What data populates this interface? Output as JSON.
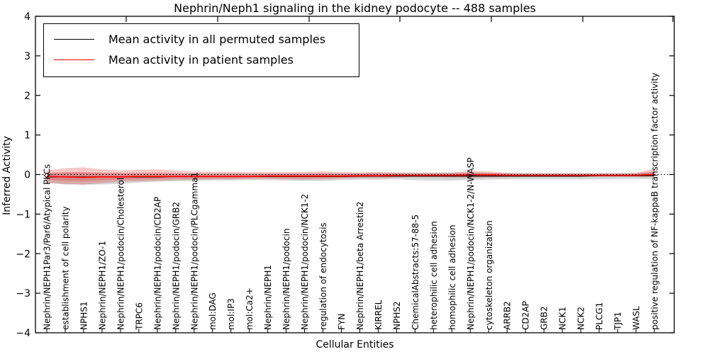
{
  "figure": {
    "title": "Nephrin/Neph1 signaling in the kidney podocyte -- 488 samples",
    "xlabel": "Cellular Entities",
    "ylabel": "Inferred Activity"
  },
  "legend": {
    "items": [
      {
        "label": "Mean activity in all permuted samples",
        "color": "#000000"
      },
      {
        "label": "Mean activity in patient samples",
        "color": "#ff0000"
      }
    ],
    "position": "upper left"
  },
  "chart_data": {
    "type": "line",
    "title": "Nephrin/Neph1 signaling in the kidney podocyte -- 488 samples",
    "xlabel": "Cellular Entities",
    "ylabel": "Inferred Activity",
    "ylim": [
      -4,
      4
    ],
    "yticks": [
      -4,
      -3,
      -2,
      -1,
      0,
      1,
      2,
      3,
      4
    ],
    "grid": false,
    "legend_position": "upper left",
    "zero_line": {
      "style": "dotted",
      "color": "#000000",
      "y": 0
    },
    "categories": [
      "Nephrin/NEPH1Par3/Par6/Atypical PKCs",
      "establishment of cell polarity",
      "NPHS1",
      "Nephrin/NEPH1/ZO-1",
      "Nephrin/NEPH1/podocin/Cholesterol",
      "TRPC6",
      "Nephrin/NEPH1/podocin/CD2AP",
      "Nephrin/NEPH1/podocin/GRB2",
      "Nephrin/NEPH1/podocin/PLCgamma1",
      "mol:DAG",
      "mol:IP3",
      "mol:Ca2+",
      "Nephrin/NEPH1",
      "Nephrin/NEPH1/podocin",
      "Nephrin/NEPH1/podocin/NCK1-2",
      "regulation of endocytosis",
      "FYN",
      "Nephrin/NEPH1/beta Arrestin2",
      "KIRREL",
      "NPHS2",
      "ChemicalAbstracts:57-88-5",
      "heterophilic cell adhesion",
      "homophilic cell adhesion",
      "Nephrin/NEPH1/podocin/NCK1-2/N-WASP",
      "cytoskeleton organization",
      "ARRB2",
      "CD2AP",
      "GRB2",
      "NCK1",
      "NCK2",
      "PLCG1",
      "TJP1",
      "WASL",
      "positive regulation of NF-kappaB transcription factor activity"
    ],
    "series": [
      {
        "name": "Mean activity in all permuted samples",
        "color": "#000000",
        "values": [
          -0.06,
          -0.06,
          -0.06,
          -0.06,
          -0.06,
          -0.06,
          -0.06,
          -0.05,
          -0.05,
          -0.05,
          -0.05,
          -0.05,
          -0.05,
          -0.05,
          -0.05,
          -0.05,
          -0.05,
          -0.04,
          -0.04,
          -0.04,
          -0.04,
          -0.04,
          -0.04,
          -0.04,
          -0.04,
          -0.04,
          -0.04,
          -0.04,
          -0.04,
          -0.04,
          -0.03,
          -0.03,
          -0.03,
          -0.03
        ]
      },
      {
        "name": "Mean activity in patient samples",
        "color": "#ff0000",
        "values": [
          -0.05,
          -0.06,
          -0.07,
          -0.06,
          -0.06,
          -0.05,
          -0.05,
          -0.05,
          -0.05,
          -0.05,
          -0.05,
          -0.05,
          -0.04,
          -0.04,
          -0.04,
          -0.04,
          -0.04,
          -0.03,
          -0.03,
          -0.02,
          -0.02,
          -0.02,
          -0.02,
          -0.01,
          -0.01,
          -0.02,
          -0.02,
          -0.02,
          -0.02,
          -0.02,
          -0.02,
          -0.02,
          -0.02,
          0.0
        ]
      }
    ],
    "bands": [
      {
        "name": "permuted samples spread",
        "color": "#999999",
        "opacity": 0.4,
        "upper": [
          0.05,
          0.05,
          0.05,
          0.04,
          0.04,
          0.03,
          0.03,
          0.03,
          0.03,
          0.03,
          0.03,
          0.03,
          0.03,
          0.03,
          0.03,
          0.03,
          0.03,
          0.04,
          0.05,
          0.05,
          0.05,
          0.05,
          0.05,
          0.05,
          0.04,
          0.04,
          0.04,
          0.04,
          0.04,
          0.04,
          0.04,
          0.04,
          0.04,
          0.06
        ],
        "lower": [
          -0.22,
          -0.25,
          -0.26,
          -0.25,
          -0.24,
          -0.2,
          -0.18,
          -0.17,
          -0.16,
          -0.15,
          -0.15,
          -0.14,
          -0.14,
          -0.15,
          -0.16,
          -0.16,
          -0.14,
          -0.13,
          -0.13,
          -0.12,
          -0.14,
          -0.15,
          -0.15,
          -0.14,
          -0.13,
          -0.12,
          -0.12,
          -0.12,
          -0.12,
          -0.12,
          -0.12,
          -0.11,
          -0.11,
          -0.12
        ]
      },
      {
        "name": "patient samples spread",
        "color": "#dd2222",
        "opacity": 0.25,
        "upper": [
          0.1,
          0.16,
          0.18,
          0.13,
          0.1,
          0.12,
          0.13,
          0.1,
          0.08,
          0.07,
          0.07,
          0.06,
          0.06,
          0.06,
          0.07,
          0.08,
          0.06,
          0.05,
          0.06,
          0.05,
          0.04,
          0.04,
          0.05,
          0.09,
          0.08,
          0.04,
          0.03,
          0.03,
          0.03,
          0.03,
          0.03,
          0.03,
          0.04,
          0.15
        ],
        "lower": [
          -0.2,
          -0.24,
          -0.25,
          -0.22,
          -0.18,
          -0.17,
          -0.16,
          -0.14,
          -0.13,
          -0.12,
          -0.12,
          -0.11,
          -0.11,
          -0.12,
          -0.13,
          -0.12,
          -0.1,
          -0.09,
          -0.09,
          -0.08,
          -0.07,
          -0.07,
          -0.08,
          -0.09,
          -0.08,
          -0.07,
          -0.06,
          -0.06,
          -0.06,
          -0.06,
          -0.06,
          -0.06,
          -0.06,
          -0.06
        ]
      }
    ]
  }
}
